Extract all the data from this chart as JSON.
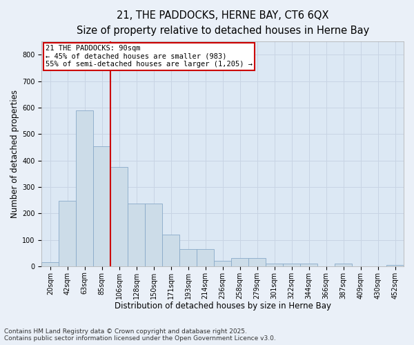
{
  "title1": "21, THE PADDOCKS, HERNE BAY, CT6 6QX",
  "title2": "Size of property relative to detached houses in Herne Bay",
  "xlabel": "Distribution of detached houses by size in Herne Bay",
  "ylabel": "Number of detached properties",
  "categories": [
    "20sqm",
    "42sqm",
    "63sqm",
    "85sqm",
    "106sqm",
    "128sqm",
    "150sqm",
    "171sqm",
    "193sqm",
    "214sqm",
    "236sqm",
    "258sqm",
    "279sqm",
    "301sqm",
    "322sqm",
    "344sqm",
    "366sqm",
    "387sqm",
    "409sqm",
    "430sqm",
    "452sqm"
  ],
  "values": [
    15,
    248,
    590,
    455,
    375,
    238,
    238,
    120,
    65,
    65,
    20,
    30,
    30,
    10,
    10,
    10,
    0,
    10,
    0,
    0,
    5
  ],
  "bar_color": "#ccdce8",
  "bar_edge_color": "#88aac8",
  "vline_color": "#cc0000",
  "annotation_line1": "21 THE PADDOCKS: 90sqm",
  "annotation_line2": "← 45% of detached houses are smaller (983)",
  "annotation_line3": "55% of semi-detached houses are larger (1,205) →",
  "ylim": [
    0,
    850
  ],
  "yticks": [
    0,
    100,
    200,
    300,
    400,
    500,
    600,
    700,
    800
  ],
  "grid_color": "#c8d4e4",
  "background_color": "#dce8f4",
  "fig_background": "#eaf0f8",
  "footer1": "Contains HM Land Registry data © Crown copyright and database right 2025.",
  "footer2": "Contains public sector information licensed under the Open Government Licence v3.0.",
  "title_fontsize": 10.5,
  "subtitle_fontsize": 9.5,
  "axis_label_fontsize": 8.5,
  "tick_fontsize": 7,
  "annotation_fontsize": 7.5,
  "footer_fontsize": 6.5
}
